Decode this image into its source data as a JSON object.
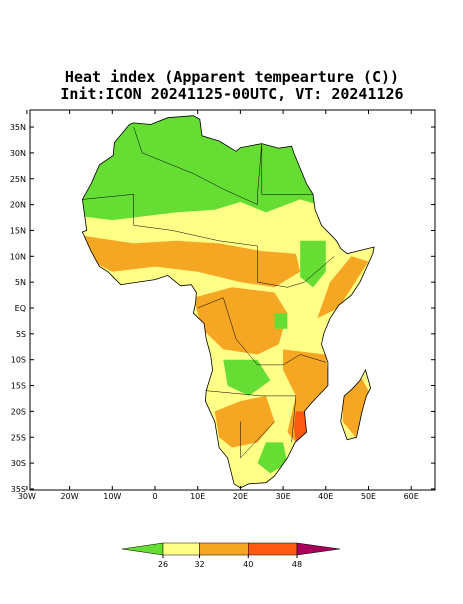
{
  "title": "Heat index (Apparent tempearture (C))",
  "subtitle": "Init:ICON 20241125-00UTC, VT: 20241126",
  "latitudes": [
    {
      "value": 35,
      "label": "35N"
    },
    {
      "value": 30,
      "label": "30N"
    },
    {
      "value": 25,
      "label": "25N"
    },
    {
      "value": 20,
      "label": "20N"
    },
    {
      "value": 15,
      "label": "15N"
    },
    {
      "value": 10,
      "label": "10N"
    },
    {
      "value": 5,
      "label": "5N"
    },
    {
      "value": 0,
      "label": "EQ"
    },
    {
      "value": -5,
      "label": "5S"
    },
    {
      "value": -10,
      "label": "10S"
    },
    {
      "value": -15,
      "label": "15S"
    },
    {
      "value": -20,
      "label": "20S"
    },
    {
      "value": -25,
      "label": "25S"
    },
    {
      "value": -30,
      "label": "30S"
    },
    {
      "value": -35,
      "label": "35S"
    }
  ],
  "longitudes": [
    {
      "value": -30,
      "label": "30W"
    },
    {
      "value": -20,
      "label": "20W"
    },
    {
      "value": -10,
      "label": "10W"
    },
    {
      "value": 0,
      "label": "0"
    },
    {
      "value": 10,
      "label": "10E"
    },
    {
      "value": 20,
      "label": "20E"
    },
    {
      "value": 30,
      "label": "30E"
    },
    {
      "value": 40,
      "label": "40E"
    },
    {
      "value": 50,
      "label": "50E"
    },
    {
      "value": 60,
      "label": "60E"
    }
  ],
  "colorbar": {
    "ticks": [
      26,
      32,
      40,
      48
    ],
    "colors": [
      "#66dd33",
      "#ffff88",
      "#f5a623",
      "#ff5a10",
      "#a8005a"
    ]
  }
}
